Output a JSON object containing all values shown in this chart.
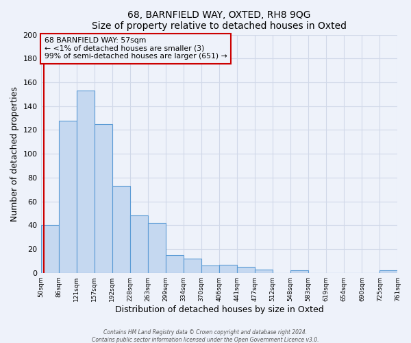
{
  "title": "68, BARNFIELD WAY, OXTED, RH8 9QG",
  "subtitle": "Size of property relative to detached houses in Oxted",
  "xlabel": "Distribution of detached houses by size in Oxted",
  "ylabel": "Number of detached properties",
  "bar_values": [
    40,
    128,
    153,
    125,
    73,
    48,
    42,
    15,
    12,
    6,
    7,
    5,
    3,
    0,
    2,
    0,
    0,
    0,
    0,
    2
  ],
  "tick_labels": [
    "50sqm",
    "86sqm",
    "121sqm",
    "157sqm",
    "192sqm",
    "228sqm",
    "263sqm",
    "299sqm",
    "334sqm",
    "370sqm",
    "406sqm",
    "441sqm",
    "477sqm",
    "512sqm",
    "548sqm",
    "583sqm",
    "619sqm",
    "654sqm",
    "690sqm",
    "725sqm",
    "761sqm"
  ],
  "bar_color": "#c5d8f0",
  "bar_edge_color": "#5b9bd5",
  "annotation_box_text": "68 BARNFIELD WAY: 57sqm\n← <1% of detached houses are smaller (3)\n99% of semi-detached houses are larger (651) →",
  "annotation_box_edge_color": "#cc0000",
  "red_line_index": 0.18,
  "ylim": [
    0,
    200
  ],
  "yticks": [
    0,
    20,
    40,
    60,
    80,
    100,
    120,
    140,
    160,
    180,
    200
  ],
  "footer_line1": "Contains HM Land Registry data © Crown copyright and database right 2024.",
  "footer_line2": "Contains public sector information licensed under the Open Government Licence v3.0.",
  "background_color": "#eef2fa",
  "grid_color": "#d0d8e8"
}
